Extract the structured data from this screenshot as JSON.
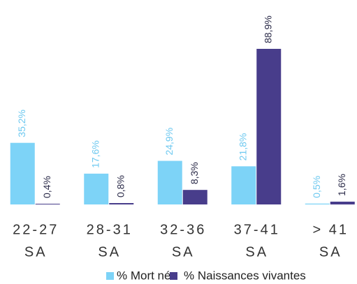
{
  "chart_data": {
    "type": "bar",
    "categories": [
      [
        "22-27",
        "SA"
      ],
      [
        "28-31",
        "SA"
      ],
      [
        "32-36",
        "SA"
      ],
      [
        "37-41",
        "SA"
      ],
      [
        "> 41",
        "SA"
      ]
    ],
    "series": [
      {
        "name": "% Mort nés",
        "color": "#7dd3f7",
        "label_color": "#6ec9f0",
        "values": [
          35.2,
          17.6,
          24.9,
          21.8,
          0.5
        ],
        "value_labels": [
          "35,2%",
          "17,6%",
          "24,9%",
          "21,8%",
          "0,5%"
        ]
      },
      {
        "name": "% Naissances vivantes",
        "color": "#483d8b",
        "label_color": "#2a2a48",
        "values": [
          0.4,
          0.8,
          8.3,
          88.9,
          1.6
        ],
        "value_labels": [
          "0,4%",
          "0,8%",
          "8,3%",
          "88,9%",
          "1,6%"
        ]
      }
    ],
    "legend": "bottom"
  }
}
